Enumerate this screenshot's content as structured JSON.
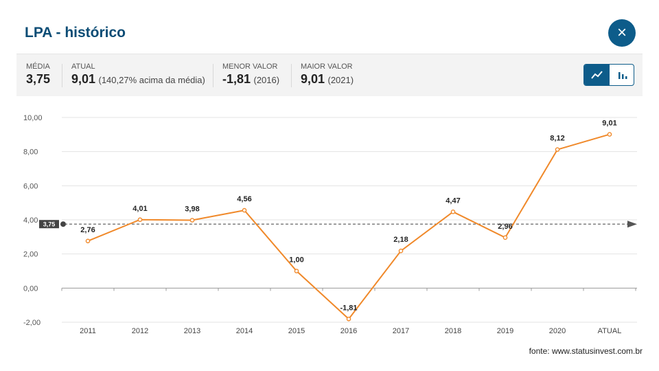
{
  "header": {
    "title": "LPA - histórico",
    "close_label": "×"
  },
  "summary": {
    "media": {
      "label": "MÉDIA",
      "value": "3,75"
    },
    "atual": {
      "label": "ATUAL",
      "value": "9,01",
      "extra": "(140,27% acima da média)"
    },
    "menor": {
      "label": "MENOR VALOR",
      "value": "-1,81",
      "extra": "(2016)"
    },
    "maior": {
      "label": "MAIOR VALOR",
      "value": "9,01",
      "extra": "(2021)"
    }
  },
  "view_toggle": {
    "active": "line",
    "options": [
      "line-chart-icon",
      "bar-chart-icon"
    ]
  },
  "chart_data": {
    "type": "line",
    "categories": [
      "2011",
      "2012",
      "2013",
      "2014",
      "2015",
      "2016",
      "2017",
      "2018",
      "2019",
      "2020",
      "ATUAL"
    ],
    "values": [
      2.76,
      4.01,
      3.98,
      4.56,
      1.0,
      -1.81,
      2.18,
      4.47,
      2.96,
      8.12,
      9.01
    ],
    "value_labels": [
      "2,76",
      "4,01",
      "3,98",
      "4,56",
      "1,00",
      "-1,81",
      "2,18",
      "4,47",
      "2,96",
      "8,12",
      "9,01"
    ],
    "y_ticks": [
      10,
      8,
      6,
      4,
      2,
      0,
      -2
    ],
    "y_tick_labels": [
      "10,00",
      "8,00",
      "6,00",
      "4,00",
      "2,00",
      "0,00",
      "-2,00"
    ],
    "ylim": [
      -2,
      10
    ],
    "average": {
      "value": 3.75,
      "label": "3,75"
    },
    "grid": true,
    "line_color": "#f0892a",
    "average_color": "#555555"
  },
  "source": "fonte: www.statusinvest.com.br"
}
